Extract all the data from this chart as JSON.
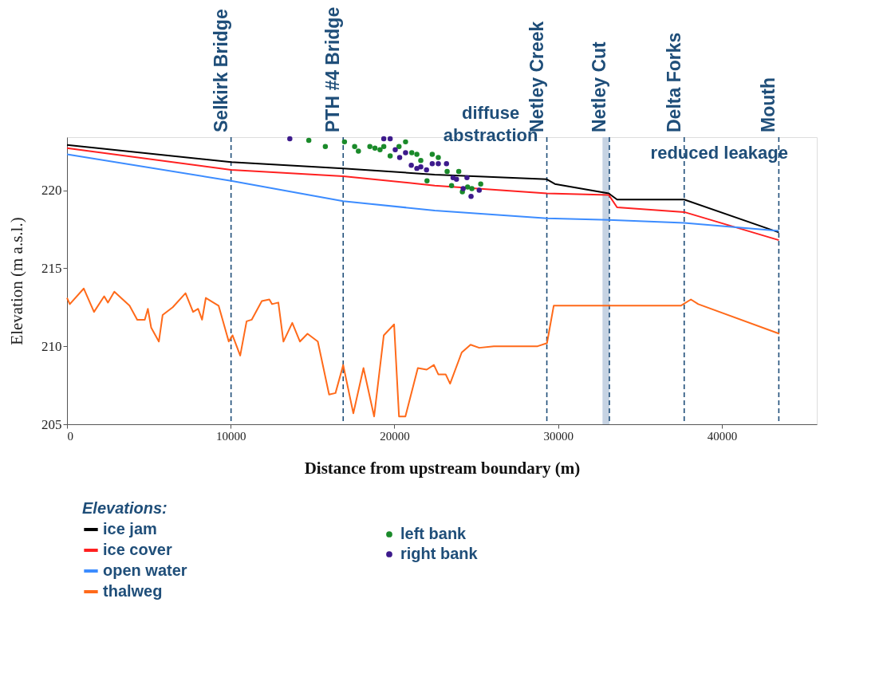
{
  "chart_data": {
    "type": "line",
    "xlabel": "Distance from upstream boundary (m)",
    "ylabel": "Elevation (m a.s.l.)",
    "legend_title": "Elevations:",
    "legend": "bottom",
    "xlim": [
      0,
      45800
    ],
    "ylim": [
      205,
      223.4
    ],
    "xticks": [
      0,
      10000,
      20000,
      30000,
      40000
    ],
    "yticks": [
      205,
      210,
      215,
      220
    ],
    "series": [
      {
        "name": "ice jam",
        "color": "#000000",
        "x": [
          0,
          10020,
          16870,
          22460,
          29310,
          29800,
          33090,
          33600,
          37700,
          43480
        ],
        "values": [
          222.9,
          221.8,
          221.4,
          221.0,
          220.7,
          220.4,
          219.8,
          219.4,
          219.4,
          217.3
        ]
      },
      {
        "name": "ice cover",
        "color": "#ff2020",
        "x": [
          0,
          10020,
          16870,
          22460,
          29310,
          33090,
          33600,
          37700,
          43480
        ],
        "values": [
          222.7,
          221.3,
          220.9,
          220.3,
          219.8,
          219.7,
          218.9,
          218.6,
          216.8
        ]
      },
      {
        "name": "open water",
        "color": "#3c8cff",
        "x": [
          0,
          10020,
          16870,
          22460,
          29310,
          33090,
          37700,
          43480
        ],
        "values": [
          222.3,
          220.6,
          219.3,
          218.7,
          218.2,
          218.1,
          217.9,
          217.4
        ]
      },
      {
        "name": "left bank",
        "color": "#1a8a2a",
        "type": "scatter",
        "marker": "circle",
        "x": [
          14770,
          15780,
          16950,
          17570,
          17800,
          18500,
          18810,
          19120,
          19350,
          19740,
          20280,
          20680,
          21060,
          21370,
          21610,
          22310,
          22680,
          21990,
          23220,
          23930,
          23490,
          24200,
          24470,
          24730,
          25270,
          24150
        ],
        "values": [
          223.2,
          222.8,
          223.1,
          222.8,
          222.5,
          222.8,
          222.7,
          222.6,
          222.8,
          222.2,
          222.8,
          223.1,
          222.4,
          222.3,
          221.9,
          222.3,
          222.1,
          220.6,
          221.2,
          221.2,
          220.3,
          null,
          220.2,
          220.1,
          220.4,
          219.9
        ]
      },
      {
        "name": "right bank",
        "color": "#3d1a8c",
        "type": "scatter",
        "marker": "circle",
        "x": [
          13610,
          19350,
          19740,
          20050,
          20320,
          20680,
          21030,
          21370,
          21610,
          21960,
          22310,
          22680,
          23180,
          23580,
          23790,
          24430,
          24200,
          24680,
          25180
        ],
        "values": [
          223.3,
          223.3,
          223.3,
          222.6,
          222.1,
          222.4,
          221.6,
          221.4,
          221.5,
          221.3,
          221.7,
          221.7,
          221.7,
          220.8,
          220.7,
          220.8,
          220.1,
          219.6,
          220.0
        ]
      },
      {
        "name": "thalweg",
        "color": "#ff6a1a",
        "x": [
          0,
          170,
          1025,
          1650,
          2270,
          2500,
          2890,
          3820,
          4290,
          4750,
          4940,
          5140,
          5610,
          5840,
          6460,
          7240,
          7700,
          8010,
          8250,
          8480,
          9260,
          9880,
          10110,
          10580,
          10970,
          11280,
          11900,
          12360,
          12520,
          12910,
          13220,
          13760,
          14230,
          14690,
          15320,
          16010,
          16400,
          16870,
          17490,
          18110,
          18760,
          19350,
          19980,
          20280,
          20670,
          21430,
          21970,
          22410,
          22680,
          23130,
          23400,
          24110,
          24650,
          25180,
          26070,
          28750,
          29320,
          29730,
          37490,
          38110,
          38560,
          43510
        ],
        "values": [
          213.1,
          212.7,
          213.7,
          212.2,
          213.2,
          212.8,
          213.5,
          212.6,
          211.7,
          211.7,
          212.4,
          211.2,
          210.3,
          212.0,
          212.5,
          213.4,
          212.2,
          212.4,
          211.7,
          213.1,
          212.6,
          210.3,
          210.7,
          209.4,
          211.6,
          211.7,
          212.9,
          213.0,
          212.7,
          212.8,
          210.3,
          211.5,
          210.3,
          210.8,
          210.3,
          206.9,
          207.0,
          208.8,
          205.7,
          208.6,
          205.5,
          210.7,
          211.4,
          205.5,
          205.5,
          208.6,
          208.5,
          208.8,
          208.2,
          208.2,
          207.6,
          209.6,
          210.1,
          209.9,
          210.0,
          210.0,
          210.2,
          212.6,
          212.6,
          213.0,
          212.7,
          210.8
        ]
      }
    ],
    "ref_lines": [
      {
        "axis": "x",
        "value": 10020,
        "label": "Selkirk Bridge",
        "color": "#1f4e79",
        "line_style": "dashed"
      },
      {
        "axis": "x",
        "value": 16870,
        "label": "PTH #4 Bridge",
        "color": "#1f4e79",
        "line_style": "dashed"
      },
      {
        "axis": "x",
        "value": 29310,
        "label": "Netley Creek",
        "color": "#1f4e79",
        "line_style": "dashed"
      },
      {
        "axis": "x",
        "value": 33130,
        "label": "Netley Cut",
        "color": "#1f4e79",
        "line_style": "dashed"
      },
      {
        "axis": "x",
        "value": 37700,
        "label": "Delta Forks",
        "color": "#1f4e79",
        "line_style": "dashed"
      },
      {
        "axis": "x",
        "value": 43480,
        "label": "Mouth",
        "color": "#1f4e79",
        "line_style": "dashed"
      }
    ],
    "bands": [
      {
        "axis": "x",
        "from": 32710,
        "to": 33130,
        "color": "#b8c8dc"
      }
    ],
    "annotations": [
      "diffuse\nabstraction",
      "reduced leakage"
    ]
  }
}
